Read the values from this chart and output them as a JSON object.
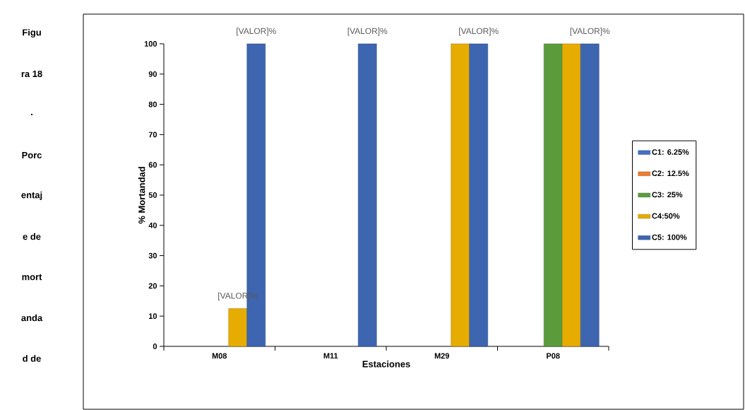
{
  "chart_data": {
    "type": "bar",
    "xlabel": "Estaciones",
    "ylabel": "% Mortandad",
    "categories": [
      "M08",
      "M11",
      "M29",
      "P08"
    ],
    "series": [
      {
        "name": "C1: 6.25%",
        "color": "#4472c4",
        "values": [
          null,
          null,
          null,
          null
        ]
      },
      {
        "name": "C2: 12.5%",
        "color": "#ed7d31",
        "values": [
          null,
          null,
          null,
          null
        ]
      },
      {
        "name": "C3: 25%",
        "color": "#5b9b3c",
        "values": [
          null,
          null,
          null,
          100
        ]
      },
      {
        "name": "C4:50%",
        "color": "#e6ac00",
        "values": [
          12.5,
          null,
          100,
          100
        ],
        "value_labels": [
          "[VALOR]%",
          null,
          null,
          null
        ]
      },
      {
        "name": "C5: 100%",
        "color": "#3d65b0",
        "values": [
          100,
          100,
          100,
          100
        ],
        "value_labels": [
          "[VALOR]%",
          "[VALOR]%",
          "[VALOR]%",
          "[VALOR]%"
        ]
      }
    ],
    "ylim": [
      0,
      100
    ],
    "yticks": [
      0,
      10,
      20,
      30,
      40,
      50,
      60,
      70,
      80,
      90,
      100
    ],
    "legend": "right",
    "grid": false,
    "annotations": [
      "Figu",
      "ra 18",
      ".",
      "Porc",
      "entaj",
      "e de",
      "mort",
      "anda",
      "d de"
    ]
  }
}
